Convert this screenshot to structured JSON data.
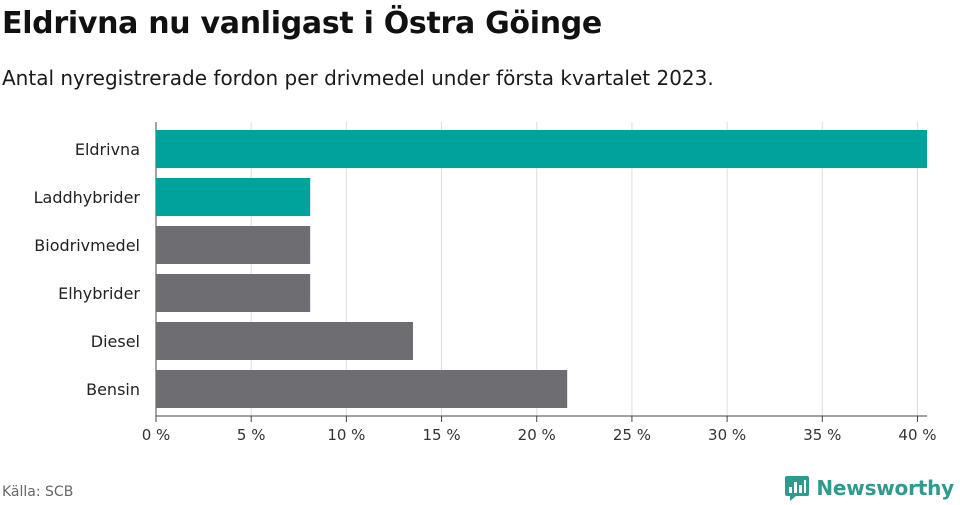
{
  "header": {
    "title": "Eldrivna nu vanligast i Östra Göinge",
    "subtitle": "Antal nyregistrerade fordon per drivmedel under första kvartalet 2023."
  },
  "footer": {
    "source": "Källa: SCB",
    "brand": "Newsworthy"
  },
  "chart_data": {
    "type": "bar",
    "orientation": "horizontal",
    "categories": [
      "Eldrivna",
      "Laddhybrider",
      "Biodrivmedel",
      "Elhybrider",
      "Diesel",
      "Bensin"
    ],
    "values": [
      40.5,
      8.1,
      8.1,
      8.1,
      13.5,
      21.6
    ],
    "colors": [
      "#00a39b",
      "#00a39b",
      "#6d6d72",
      "#6d6d72",
      "#6d6d72",
      "#6d6d72"
    ],
    "xlim": [
      0,
      40.5
    ],
    "xticks": [
      0,
      5,
      10,
      15,
      20,
      25,
      30,
      35,
      40
    ],
    "xtick_labels": [
      "0 %",
      "5 %",
      "10 %",
      "15 %",
      "20 %",
      "25 %",
      "30 %",
      "35 %",
      "40 %"
    ],
    "grid": true
  }
}
